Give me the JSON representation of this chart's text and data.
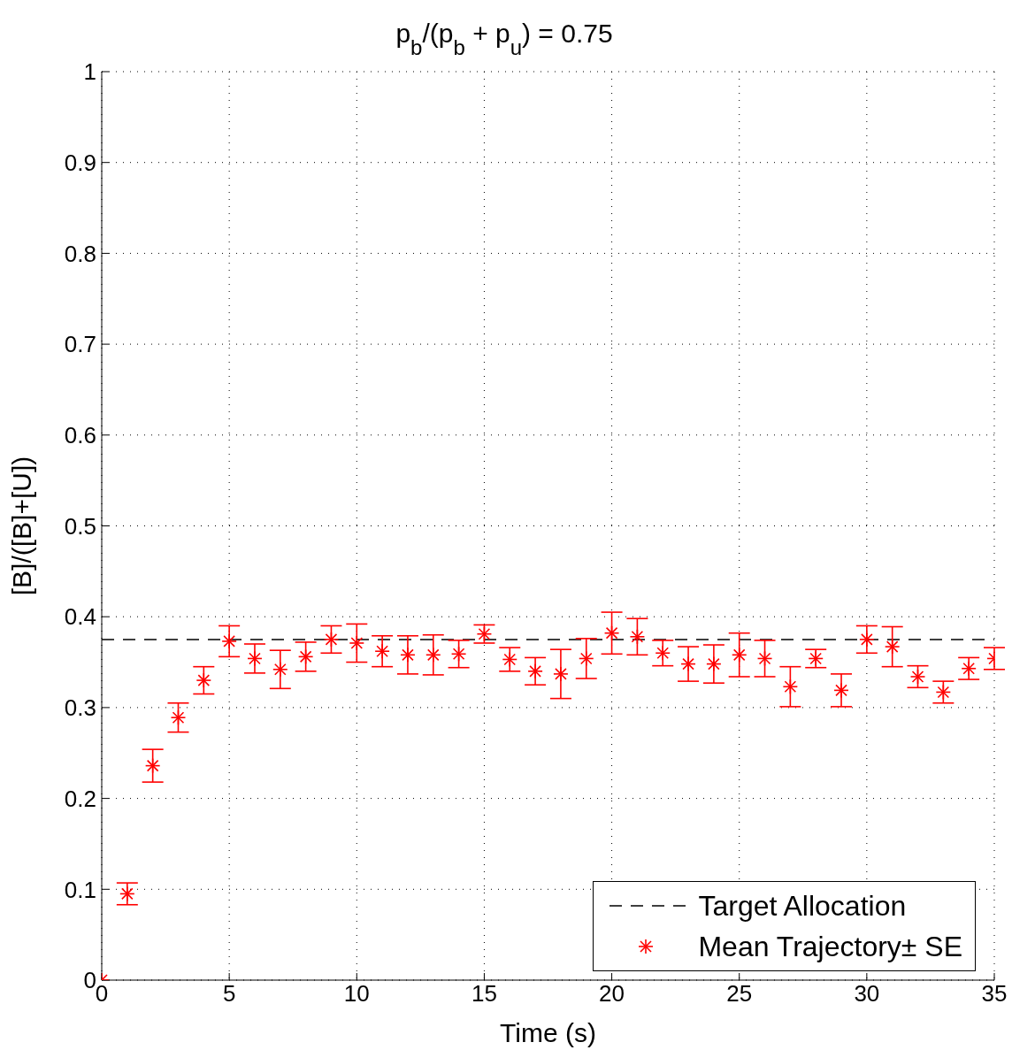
{
  "chart_data": {
    "type": "scatter",
    "title": "p$_{b}$/(p$_{b}$ + p$_{u}$) = 0.75",
    "xlabel": "Time (s)",
    "ylabel": "[B]/([B]+[U])",
    "x": [
      0,
      1,
      2,
      3,
      4,
      5,
      6,
      7,
      8,
      9,
      10,
      11,
      12,
      13,
      14,
      15,
      16,
      17,
      18,
      19,
      20,
      21,
      22,
      23,
      24,
      25,
      26,
      27,
      28,
      29,
      30,
      31,
      32,
      33,
      34,
      35
    ],
    "series": [
      {
        "name": "Mean Trajectory± SE",
        "color": "#ff0000",
        "values": [
          0,
          0.095,
          0.236,
          0.289,
          0.33,
          0.373,
          0.354,
          0.342,
          0.356,
          0.375,
          0.371,
          0.362,
          0.358,
          0.358,
          0.359,
          0.381,
          0.353,
          0.34,
          0.337,
          0.354,
          0.382,
          0.378,
          0.36,
          0.348,
          0.348,
          0.358,
          0.354,
          0.323,
          0.354,
          0.319,
          0.375,
          0.367,
          0.334,
          0.317,
          0.343,
          0.354
        ],
        "errors": [
          null,
          0.012,
          0.018,
          0.016,
          0.015,
          0.017,
          0.016,
          0.021,
          0.016,
          0.015,
          0.021,
          0.017,
          0.021,
          0.022,
          0.015,
          0.01,
          0.013,
          0.015,
          0.027,
          0.022,
          0.023,
          0.02,
          0.014,
          0.019,
          0.021,
          0.024,
          0.02,
          0.022,
          0.01,
          0.018,
          0.015,
          0.022,
          0.012,
          0.012,
          0.012,
          0.012
        ]
      }
    ],
    "ref_lines": [
      {
        "axis": "y",
        "value": 0.375,
        "label": "Target Allocation",
        "color": "#000000",
        "line_style": "dashed"
      }
    ],
    "xlim": [
      0,
      35
    ],
    "xticks": [
      0,
      5,
      10,
      15,
      20,
      25,
      30,
      35
    ],
    "ylim": [
      0,
      1
    ],
    "yticks": [
      0,
      0.1,
      0.2,
      0.3,
      0.4,
      0.5,
      0.6,
      0.7,
      0.8,
      0.9,
      1
    ],
    "grid": true,
    "legend": "bottom right",
    "marker": "cross"
  }
}
